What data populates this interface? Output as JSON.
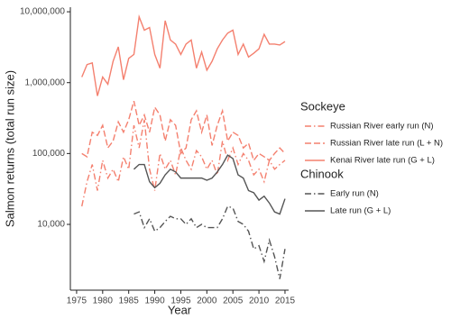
{
  "chart_data": {
    "type": "line",
    "yscale": "log",
    "grid": false,
    "x_label": "Year",
    "y_label": "Salmon returns (total run size)",
    "x": [
      1976,
      1977,
      1978,
      1979,
      1980,
      1981,
      1982,
      1983,
      1984,
      1985,
      1986,
      1987,
      1988,
      1989,
      1990,
      1991,
      1992,
      1993,
      1994,
      1995,
      1996,
      1997,
      1998,
      1999,
      2000,
      2001,
      2002,
      2003,
      2004,
      2005,
      2006,
      2007,
      2008,
      2009,
      2010,
      2011,
      2012,
      2013,
      2014,
      2015
    ],
    "xlim": [
      1973.8,
      2015.7
    ],
    "xticks": [
      1975,
      1980,
      1985,
      1990,
      1995,
      2000,
      2005,
      2010,
      2015
    ],
    "ylim": [
      1180,
      11600000
    ],
    "yticks": [
      {
        "value": 10000,
        "label": "10,000"
      },
      {
        "value": 100000,
        "label": "100,000"
      },
      {
        "value": 1000000,
        "label": "1,000,000"
      },
      {
        "value": 10000000,
        "label": "10,000,000"
      }
    ],
    "groups": [
      {
        "name": "Sockeye",
        "series": [
          {
            "name": "Russian River early run (N)",
            "color": "#f4806f",
            "dash": "dashdot",
            "values": [
              18000,
              40000,
              70000,
              30000,
              80000,
              45000,
              60000,
              40000,
              90000,
              60000,
              250000,
              120000,
              300000,
              60000,
              30000,
              100000,
              60000,
              80000,
              50000,
              120000,
              80000,
              60000,
              110000,
              90000,
              60000,
              80000,
              50000,
              150000,
              80000,
              120000,
              70000,
              100000,
              80000,
              50000,
              60000,
              40000,
              80000,
              60000,
              70000,
              80000
            ]
          },
          {
            "name": "Russian River late run (L + N)",
            "color": "#f4806f",
            "dash": "dash",
            "values": [
              100000,
              90000,
              200000,
              180000,
              250000,
              120000,
              150000,
              280000,
              200000,
              300000,
              550000,
              250000,
              350000,
              200000,
              450000,
              350000,
              150000,
              300000,
              250000,
              100000,
              120000,
              300000,
              400000,
              200000,
              350000,
              130000,
              250000,
              400000,
              150000,
              200000,
              180000,
              120000,
              140000,
              80000,
              100000,
              90000,
              80000,
              100000,
              120000,
              100000
            ]
          },
          {
            "name": "Kenai River late run (G + L)",
            "color": "#f4806f",
            "dash": "solid",
            "values": [
              1200000,
              1800000,
              1900000,
              650000,
              1200000,
              950000,
              2000000,
              3200000,
              1100000,
              2200000,
              2500000,
              8500000,
              5500000,
              6000000,
              2500000,
              1600000,
              7500000,
              4000000,
              3500000,
              2500000,
              3500000,
              4000000,
              1600000,
              2700000,
              1500000,
              2000000,
              3000000,
              4000000,
              5000000,
              5500000,
              2500000,
              3500000,
              2300000,
              2600000,
              3000000,
              4800000,
              3500000,
              3500000,
              3400000,
              3800000
            ]
          }
        ]
      },
      {
        "name": "Chinook",
        "series": [
          {
            "name": "Early run (N)",
            "color": "#555555",
            "dash": "dashdot",
            "values": [
              null,
              null,
              null,
              null,
              null,
              null,
              null,
              null,
              null,
              null,
              14000,
              15000,
              9000,
              12000,
              8000,
              9000,
              11000,
              13000,
              12000,
              12000,
              10000,
              12000,
              9000,
              10000,
              9000,
              9000,
              9000,
              12000,
              18000,
              17000,
              11000,
              10000,
              8000,
              4500,
              5000,
              3000,
              6000,
              3500,
              1700,
              4500
            ]
          },
          {
            "name": "Late run (G + L)",
            "color": "#555555",
            "dash": "solid",
            "values": [
              null,
              null,
              null,
              null,
              null,
              null,
              null,
              null,
              null,
              null,
              60000,
              70000,
              70000,
              40000,
              33000,
              38000,
              50000,
              60000,
              55000,
              45000,
              45000,
              45000,
              45000,
              45000,
              42000,
              45000,
              55000,
              70000,
              95000,
              85000,
              50000,
              45000,
              30000,
              28000,
              22000,
              25000,
              20000,
              15000,
              14000,
              23000
            ]
          }
        ]
      }
    ]
  }
}
